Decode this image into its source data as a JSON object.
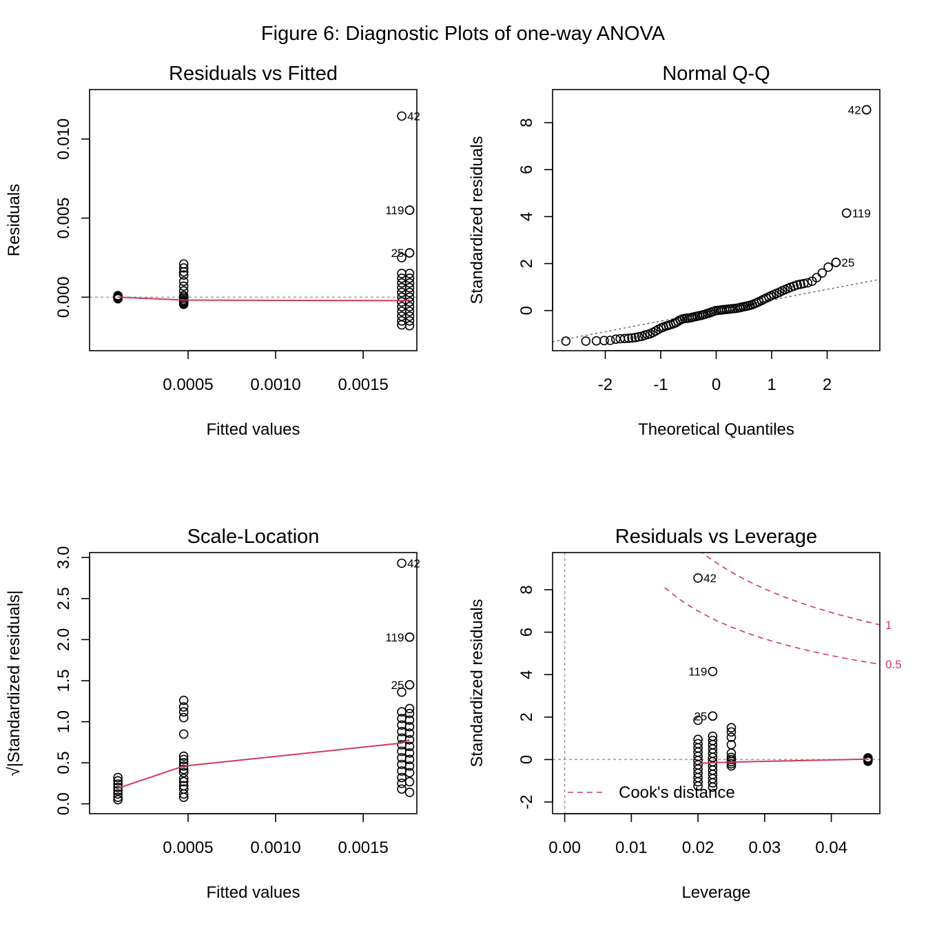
{
  "figure_title": "Figure 6: Diagnostic Plots of one-way ANOVA",
  "colors": {
    "smooth": "#d03a5a",
    "refline": "#999999",
    "qqline": "#666666",
    "points": "#000000",
    "cook": "#d03a5a"
  },
  "chart_data": [
    {
      "type": "scatter",
      "title": "Residuals vs Fitted",
      "xlabel": "Fitted values",
      "ylabel": "Residuals",
      "xlim": [
        -6.27e-05,
        0.0018063
      ],
      "ylim": [
        -0.003383,
        0.013127
      ],
      "xticks": [
        0.0005,
        0.001,
        0.0015
      ],
      "xtick_labels": [
        "0.0005",
        "0.0010",
        "0.0015"
      ],
      "yticks": [
        0.0,
        0.005,
        0.01
      ],
      "ytick_labels": [
        "0.000",
        "0.005",
        "0.010"
      ],
      "hline": 0,
      "groups": [
        {
          "x": 9.93e-05,
          "y": [
            -0.0001,
            -7e-05,
            -5e-05,
            -3e-05,
            0.0,
            2e-05,
            4e-05,
            6e-05,
            8e-05,
            0.0001
          ]
        },
        {
          "x": 0.000475,
          "y": [
            -0.00045,
            -0.0004,
            -0.00035,
            -0.0003,
            -0.00025,
            -0.0002,
            -0.0001,
            0.0,
            0.0001,
            0.0004,
            0.0007,
            0.001,
            0.0014,
            0.0016,
            0.00185,
            0.0021
          ]
        },
        {
          "x": 0.00172,
          "y": [
            -0.00175,
            -0.0015,
            -0.0012,
            -0.0009,
            -0.0006,
            -0.0003,
            0.0,
            0.0003,
            0.0006,
            0.0009,
            0.0012,
            0.0015,
            0.0025
          ]
        },
        {
          "x": 0.001765,
          "y": [
            -0.0018,
            -0.0015,
            -0.0012,
            -0.0009,
            -0.0006,
            -0.0003,
            0.0,
            0.0003,
            0.0006,
            0.0009,
            0.0012,
            0.0015,
            0.0028,
            0.0055
          ]
        }
      ],
      "labeled_points": [
        {
          "x": 0.00172,
          "y": 0.01145,
          "label": "42",
          "side": "right"
        },
        {
          "x": 0.001765,
          "y": 0.0055,
          "label": "119",
          "side": "left"
        },
        {
          "x": 0.001765,
          "y": 0.0028,
          "label": "25",
          "side": "left"
        }
      ],
      "smooth": {
        "x": [
          9.93e-05,
          0.000475,
          0.00172,
          0.001765
        ],
        "y": [
          0.0,
          -0.00018,
          -0.00022,
          -0.00018
        ]
      }
    },
    {
      "type": "scatter",
      "title": "Normal Q-Q",
      "xlabel": "Theoretical Quantiles",
      "ylabel": "Standardized residuals",
      "xlim": [
        -2.95,
        2.95
      ],
      "ylim": [
        -1.71,
        9.41
      ],
      "xticks": [
        -2,
        -1,
        0,
        1,
        2
      ],
      "xtick_labels": [
        "-2",
        "-1",
        "0",
        "1",
        "2"
      ],
      "yticks": [
        0,
        2,
        4,
        6,
        8
      ],
      "ytick_labels": [
        "0",
        "2",
        "4",
        "6",
        "8"
      ],
      "qqline": {
        "intercept": 0.0,
        "slope": 0.45
      },
      "curve_points": [
        [
          -2.71,
          -1.3
        ],
        [
          -2.35,
          -1.3
        ],
        [
          -2.16,
          -1.29
        ],
        [
          -2.02,
          -1.28
        ],
        [
          -1.91,
          -1.27
        ],
        [
          -1.81,
          -1.22
        ],
        [
          -1.73,
          -1.2
        ],
        [
          -1.65,
          -1.19
        ],
        [
          -1.58,
          -1.18
        ],
        [
          -1.52,
          -1.17
        ],
        [
          -1.46,
          -1.15
        ],
        [
          -1.4,
          -1.12
        ],
        [
          -1.34,
          -1.1
        ],
        [
          -1.29,
          -1.05
        ],
        [
          -1.24,
          -1.02
        ],
        [
          -1.19,
          -0.99
        ],
        [
          -1.14,
          -0.93
        ],
        [
          -1.09,
          -0.87
        ],
        [
          -1.04,
          -0.8
        ],
        [
          -0.99,
          -0.74
        ],
        [
          -0.95,
          -0.7
        ],
        [
          -0.9,
          -0.66
        ],
        [
          -0.86,
          -0.63
        ],
        [
          -0.82,
          -0.6
        ],
        [
          -0.77,
          -0.56
        ],
        [
          -0.73,
          -0.52
        ],
        [
          -0.69,
          -0.46
        ],
        [
          -0.65,
          -0.4
        ],
        [
          -0.61,
          -0.36
        ],
        [
          -0.57,
          -0.34
        ],
        [
          -0.53,
          -0.33
        ],
        [
          -0.49,
          -0.32
        ],
        [
          -0.45,
          -0.3
        ],
        [
          -0.42,
          -0.28
        ],
        [
          -0.38,
          -0.26
        ],
        [
          -0.34,
          -0.24
        ],
        [
          -0.3,
          -0.22
        ],
        [
          -0.26,
          -0.2
        ],
        [
          -0.23,
          -0.18
        ],
        [
          -0.19,
          -0.15
        ],
        [
          -0.15,
          -0.12
        ],
        [
          -0.11,
          -0.09
        ],
        [
          -0.08,
          -0.06
        ],
        [
          -0.04,
          -0.03
        ],
        [
          0.0,
          0.0
        ],
        [
          0.04,
          0.01
        ],
        [
          0.08,
          0.02
        ],
        [
          0.11,
          0.03
        ],
        [
          0.15,
          0.04
        ],
        [
          0.19,
          0.05
        ],
        [
          0.23,
          0.06
        ],
        [
          0.26,
          0.07
        ],
        [
          0.3,
          0.08
        ],
        [
          0.34,
          0.09
        ],
        [
          0.38,
          0.1
        ],
        [
          0.42,
          0.12
        ],
        [
          0.45,
          0.14
        ],
        [
          0.49,
          0.16
        ],
        [
          0.53,
          0.18
        ],
        [
          0.57,
          0.2
        ],
        [
          0.61,
          0.22
        ],
        [
          0.65,
          0.25
        ],
        [
          0.69,
          0.29
        ],
        [
          0.73,
          0.33
        ],
        [
          0.77,
          0.38
        ],
        [
          0.82,
          0.43
        ],
        [
          0.86,
          0.48
        ],
        [
          0.9,
          0.53
        ],
        [
          0.95,
          0.58
        ],
        [
          0.99,
          0.63
        ],
        [
          1.04,
          0.68
        ],
        [
          1.09,
          0.73
        ],
        [
          1.14,
          0.78
        ],
        [
          1.19,
          0.84
        ],
        [
          1.24,
          0.89
        ],
        [
          1.29,
          0.94
        ],
        [
          1.34,
          0.99
        ],
        [
          1.4,
          1.04
        ],
        [
          1.46,
          1.09
        ],
        [
          1.52,
          1.12
        ],
        [
          1.58,
          1.15
        ],
        [
          1.65,
          1.18
        ],
        [
          1.73,
          1.25
        ],
        [
          1.81,
          1.4
        ],
        [
          1.91,
          1.6
        ],
        [
          2.02,
          1.85
        ],
        [
          2.16,
          2.05
        ],
        [
          2.35,
          4.15
        ],
        [
          2.71,
          8.55
        ]
      ],
      "labeled_points": [
        {
          "x": 2.71,
          "y": 8.55,
          "label": "42",
          "side": "left"
        },
        {
          "x": 2.35,
          "y": 4.15,
          "label": "119",
          "side": "right"
        },
        {
          "x": 2.16,
          "y": 2.05,
          "label": "25",
          "side": "right"
        }
      ]
    },
    {
      "type": "scatter",
      "title": "Scale-Location",
      "xlabel": "Fitted values",
      "ylabel": "√|Standardized residuals|",
      "xlim": [
        -6.27e-05,
        0.0018063
      ],
      "ylim": [
        -0.12,
        3.06
      ],
      "xticks": [
        0.0005,
        0.001,
        0.0015
      ],
      "xtick_labels": [
        "0.0005",
        "0.0010",
        "0.0015"
      ],
      "yticks": [
        0.0,
        0.5,
        1.0,
        1.5,
        2.0,
        2.5,
        3.0
      ],
      "ytick_labels": [
        "0.0",
        "0.5",
        "1.0",
        "1.5",
        "2.0",
        "2.5",
        "3.0"
      ],
      "groups": [
        {
          "x": 9.93e-05,
          "y": [
            0.05,
            0.08,
            0.12,
            0.16,
            0.2,
            0.24,
            0.28,
            0.32
          ]
        },
        {
          "x": 0.000475,
          "y": [
            0.08,
            0.12,
            0.18,
            0.22,
            0.27,
            0.31,
            0.38,
            0.42,
            0.46,
            0.5,
            0.54,
            0.58,
            0.85,
            1.05,
            1.12,
            1.18,
            1.26
          ]
        },
        {
          "x": 0.00172,
          "y": [
            0.18,
            0.25,
            0.32,
            0.4,
            0.48,
            0.56,
            0.64,
            0.72,
            0.8,
            0.88,
            0.96,
            1.04,
            1.12,
            1.36
          ]
        },
        {
          "x": 0.001765,
          "y": [
            0.14,
            0.27,
            0.38,
            0.46,
            0.54,
            0.62,
            0.7,
            0.78,
            0.86,
            0.94,
            1.02,
            1.1,
            1.16,
            1.45,
            2.03
          ]
        }
      ],
      "labeled_points": [
        {
          "x": 0.00172,
          "y": 2.93,
          "label": "42",
          "side": "right"
        },
        {
          "x": 0.001765,
          "y": 2.03,
          "label": "119",
          "side": "left"
        },
        {
          "x": 0.001765,
          "y": 1.45,
          "label": "25",
          "side": "left"
        }
      ],
      "smooth": {
        "x": [
          9.93e-05,
          0.000475,
          0.00172,
          0.001765
        ],
        "y": [
          0.19,
          0.46,
          0.74,
          0.78
        ]
      }
    },
    {
      "type": "scatter",
      "title": "Residuals vs Leverage",
      "xlabel": "Leverage",
      "ylabel": "Standardized residuals",
      "xlim": [
        -0.00182,
        0.04728
      ],
      "ylim": [
        -2.55,
        9.75
      ],
      "xticks": [
        0.0,
        0.01,
        0.02,
        0.03,
        0.04
      ],
      "xtick_labels": [
        "0.00",
        "0.01",
        "0.02",
        "0.03",
        "0.04"
      ],
      "yticks": [
        -2,
        0,
        2,
        4,
        6,
        8
      ],
      "ytick_labels": [
        "-2",
        "0",
        "2",
        "4",
        "6",
        "8"
      ],
      "hline": 0,
      "vline": 0,
      "groups": [
        {
          "x": 0.02,
          "y": [
            -1.25,
            -1.05,
            -0.85,
            -0.65,
            -0.45,
            -0.25,
            -0.05,
            0.15,
            0.35,
            0.55,
            0.75,
            0.95,
            1.85
          ]
        },
        {
          "x": 0.0222,
          "y": [
            -1.3,
            -1.1,
            -0.9,
            -0.7,
            -0.5,
            -0.3,
            -0.1,
            0.1,
            0.3,
            0.5,
            0.7,
            0.9,
            1.1,
            2.05
          ]
        },
        {
          "x": 0.025,
          "y": [
            -0.3,
            -0.2,
            -0.1,
            0.0,
            0.1,
            0.3,
            0.7,
            1.05,
            1.3,
            1.5
          ]
        },
        {
          "x": 0.0455,
          "y": [
            -0.08,
            -0.04,
            0.0,
            0.04,
            0.08
          ]
        }
      ],
      "labeled_points": [
        {
          "x": 0.02,
          "y": 8.55,
          "label": "42",
          "side": "right"
        },
        {
          "x": 0.0222,
          "y": 4.15,
          "label": "119",
          "side": "left"
        },
        {
          "x": 0.0222,
          "y": 2.05,
          "label": "25",
          "side": "left"
        }
      ],
      "smooth": {
        "x": [
          0.02,
          0.0222,
          0.025,
          0.0455
        ],
        "y": [
          -0.18,
          -0.15,
          -0.12,
          0.02
        ]
      },
      "cooks": [
        {
          "level": 0.5,
          "label": "0.5"
        },
        {
          "level": 1,
          "label": "1"
        }
      ],
      "cook_params": {
        "p": 2
      },
      "legend": {
        "label": "Cook's distance",
        "position": "bottom-left"
      }
    }
  ]
}
